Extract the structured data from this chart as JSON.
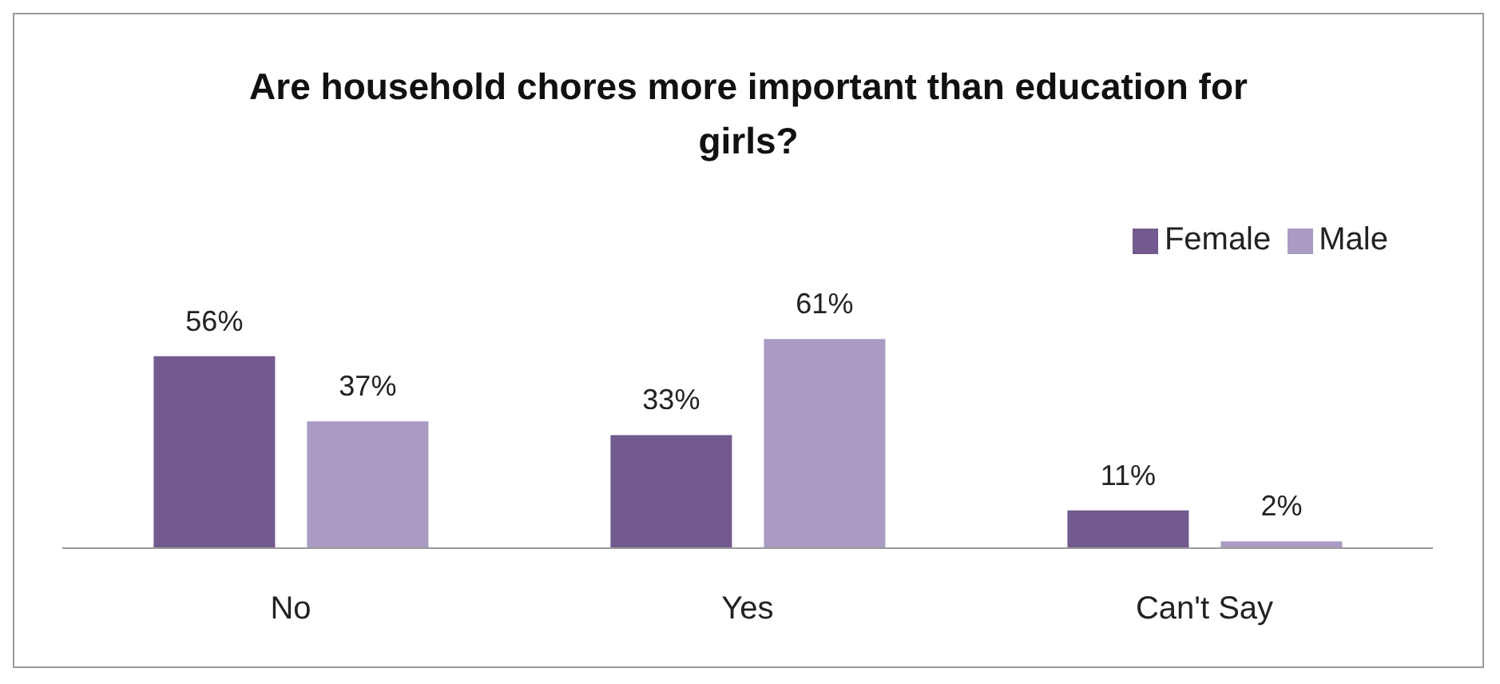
{
  "chart_data": {
    "type": "bar",
    "title": "Are household chores more important than education for girls?",
    "categories": [
      "No",
      "Yes",
      "Can't Say"
    ],
    "series": [
      {
        "name": "Female",
        "color": "#725a8f",
        "values": [
          56,
          33,
          11
        ],
        "value_labels": [
          "56%",
          "33%",
          "11%"
        ]
      },
      {
        "name": "Male",
        "color": "#a99bc4",
        "values": [
          37,
          61,
          2
        ],
        "value_labels": [
          "37%",
          "61%",
          "2%"
        ]
      }
    ],
    "legend": "top right",
    "grid": false
  }
}
